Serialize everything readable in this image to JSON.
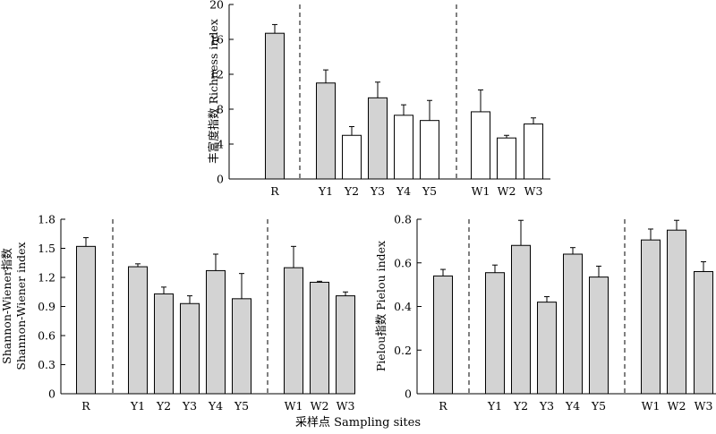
{
  "chart_data": [
    {
      "type": "bar",
      "ylabel": "丰富度指数 Richness index",
      "ylim": [
        0,
        20
      ],
      "yticks": [
        "0",
        "4",
        "8",
        "12",
        "16",
        "20"
      ],
      "categories": [
        "R",
        "Y1",
        "Y2",
        "Y3",
        "Y4",
        "Y5",
        "W1",
        "W2",
        "W3"
      ],
      "values": [
        16.7,
        11.0,
        5.0,
        9.3,
        7.3,
        6.7,
        7.7,
        4.7,
        6.3
      ],
      "errors": [
        1.0,
        1.5,
        1.0,
        1.8,
        1.2,
        2.3,
        2.5,
        0.3,
        0.7
      ],
      "bar_fills": [
        "#d3d3d3",
        "#d3d3d3",
        "#ffffff",
        "#d3d3d3",
        "#ffffff",
        "#ffffff",
        "#ffffff",
        "#ffffff",
        "#ffffff"
      ],
      "group_separators_after": [
        "R",
        "Y5"
      ]
    },
    {
      "type": "bar",
      "ylabel": "Shannon-Wiener指数 Shannon-Wiener index",
      "ylabel_lines": [
        "Shannon-Wiener指数",
        "Shannon-Wiener index"
      ],
      "ylim": [
        0,
        1.8
      ],
      "yticks": [
        "0",
        "0.3",
        "0.6",
        "0.9",
        "1.2",
        "1.5",
        "1.8"
      ],
      "categories": [
        "R",
        "Y1",
        "Y2",
        "Y3",
        "Y4",
        "Y5",
        "W1",
        "W2",
        "W3"
      ],
      "values": [
        1.52,
        1.31,
        1.03,
        0.93,
        1.27,
        0.98,
        1.3,
        1.15,
        1.01
      ],
      "errors": [
        0.09,
        0.03,
        0.07,
        0.08,
        0.17,
        0.26,
        0.22,
        0.01,
        0.04
      ],
      "bar_fills": [
        "#d3d3d3",
        "#d3d3d3",
        "#d3d3d3",
        "#d3d3d3",
        "#d3d3d3",
        "#d3d3d3",
        "#d3d3d3",
        "#d3d3d3",
        "#d3d3d3"
      ],
      "group_separators_after": [
        "R",
        "Y5"
      ]
    },
    {
      "type": "bar",
      "ylabel": "Pielou指数 Pielou index",
      "ylim": [
        0,
        0.8
      ],
      "yticks": [
        "0",
        "0.2",
        "0.4",
        "0.6",
        "0.8"
      ],
      "categories": [
        "R",
        "Y1",
        "Y2",
        "Y3",
        "Y4",
        "Y5",
        "W1",
        "W2",
        "W3"
      ],
      "values": [
        0.54,
        0.555,
        0.68,
        0.42,
        0.64,
        0.535,
        0.705,
        0.75,
        0.56
      ],
      "errors": [
        0.03,
        0.035,
        0.115,
        0.025,
        0.03,
        0.05,
        0.05,
        0.045,
        0.045
      ],
      "bar_fills": [
        "#d3d3d3",
        "#d3d3d3",
        "#d3d3d3",
        "#d3d3d3",
        "#d3d3d3",
        "#d3d3d3",
        "#d3d3d3",
        "#d3d3d3",
        "#d3d3d3"
      ],
      "group_separators_after": [
        "R",
        "Y5"
      ]
    }
  ],
  "figure": {
    "xlabel": "采样点 Sampling sites"
  }
}
